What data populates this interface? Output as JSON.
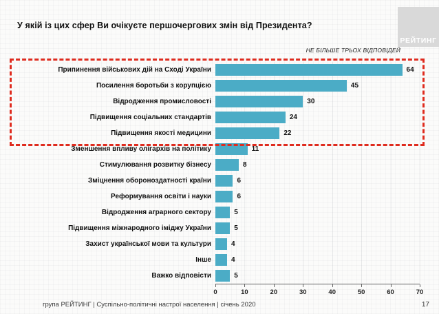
{
  "slide": {
    "title": "У якій із цих сфер Ви очікуєте першочергових змін від Президента?",
    "note": "НЕ БІЛЬШЕ ТРЬОХ ВІДПОВІДЕЙ",
    "logo_text": "РЕЙТИНГ",
    "footer": "група РЕЙТИНГ | Суспільно-політичні настрої населення | січень 2020",
    "page_number": "17"
  },
  "colors": {
    "bar": "#4BACC6",
    "highlight_box": "#DF2B1E",
    "logo_bg": "#D9D9D9"
  },
  "chart_data": {
    "type": "bar",
    "orientation": "horizontal",
    "title": "У якій із цих сфер Ви очікуєте першочергових змін від Президента?",
    "annotation": "НЕ БІЛЬШЕ ТРЬОХ ВІДПОВІДЕЙ",
    "categories": [
      "Припинення військових дій на Сході України",
      "Посилення боротьби з корупцією",
      "Відродження промисловості",
      "Підвищення соціальних стандартів",
      "Підвищення якості медицини",
      "Зменшення впливу олігархів на політику",
      "Стимулювання розвитку бізнесу",
      "Зміцнення обороноздатності країни",
      "Реформування освіти і науки",
      "Відродження аграрного сектору",
      "Підвищення міжнародного іміджу України",
      "Захист української мови та культури",
      "Інше",
      "Важко відповісти"
    ],
    "values": [
      64,
      45,
      30,
      24,
      22,
      11,
      8,
      6,
      6,
      5,
      5,
      4,
      4,
      5
    ],
    "highlighted_top_n": 5,
    "xticks": [
      0,
      10,
      20,
      30,
      40,
      50,
      60,
      70
    ],
    "xlim": [
      0,
      70
    ],
    "grid": true,
    "legend": false
  }
}
